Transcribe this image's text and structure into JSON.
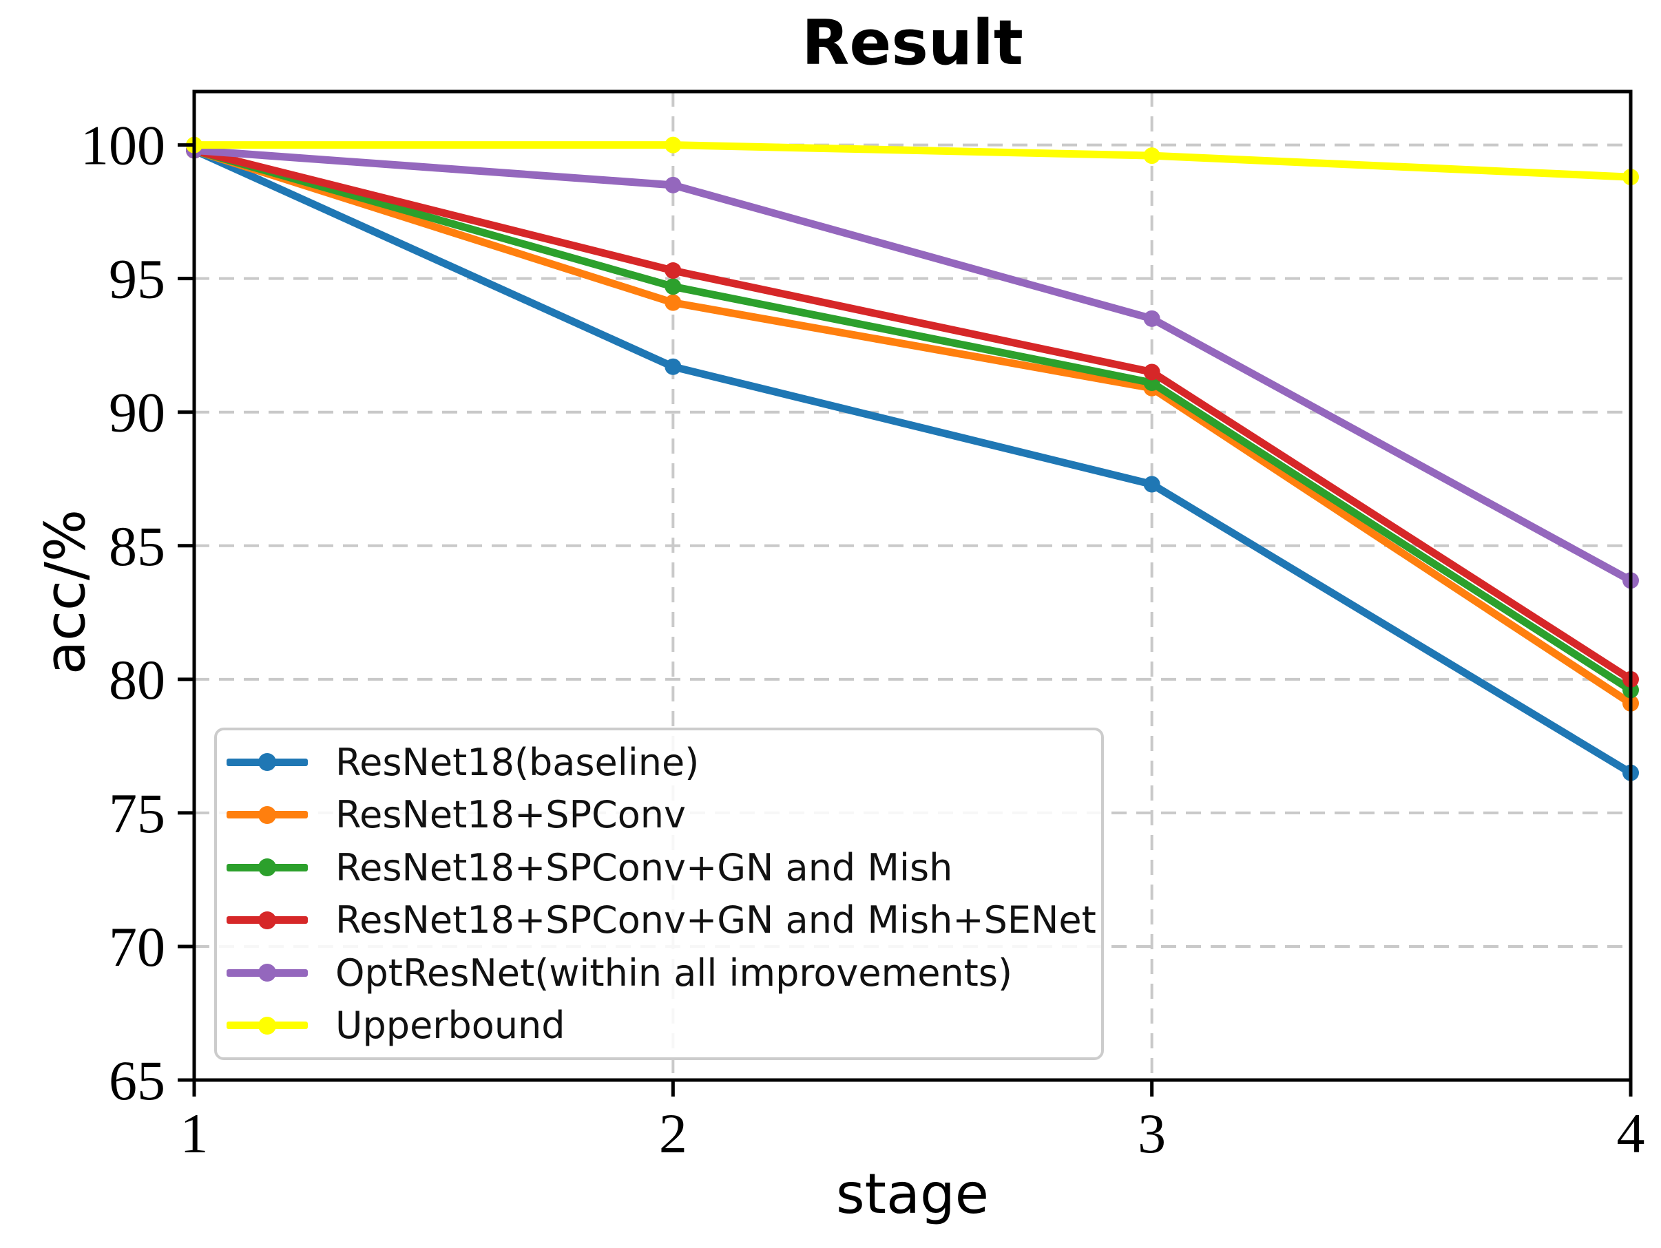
{
  "title": "Result",
  "axes": {
    "x_label": "stage",
    "y_label": "acc/%"
  },
  "chart_data": {
    "type": "line",
    "title": "Result",
    "xlabel": "stage",
    "ylabel": "acc/%",
    "x": [
      1,
      2,
      3,
      4
    ],
    "x_tick_labels": [
      "1",
      "2",
      "3",
      "4"
    ],
    "y_ticks": [
      100,
      95,
      90,
      85,
      80,
      75,
      70,
      65
    ],
    "y_tick_labels": [
      "100",
      "95",
      "90",
      "85",
      "80",
      "75",
      "70",
      "65"
    ],
    "xlim": [
      1,
      4
    ],
    "ylim": [
      65,
      102
    ],
    "grid": "dashed-both-axes",
    "legend_position": "lower-left",
    "series": [
      {
        "name": "ResNet18(baseline)",
        "color": "#1f77b4",
        "marker": "circle",
        "values": [
          99.8,
          91.7,
          87.3,
          76.5
        ]
      },
      {
        "name": "ResNet18+SPConv",
        "color": "#ff7f0e",
        "marker": "circle",
        "values": [
          99.8,
          94.1,
          90.9,
          79.1
        ]
      },
      {
        "name": "ResNet18+SPConv+GN and Mish",
        "color": "#2ca02c",
        "marker": "circle",
        "values": [
          99.8,
          94.7,
          91.1,
          79.6
        ]
      },
      {
        "name": "ResNet18+SPConv+GN and Mish+SENet",
        "color": "#d62728",
        "marker": "circle",
        "values": [
          99.8,
          95.3,
          91.5,
          80.0
        ]
      },
      {
        "name": "OptResNet(within all improvements)",
        "color": "#9467bd",
        "marker": "circle",
        "values": [
          99.8,
          98.5,
          93.5,
          83.7
        ]
      },
      {
        "name": "Upperbound",
        "color": "#ffff00",
        "marker": "circle",
        "values": [
          100.0,
          100.0,
          99.6,
          98.8
        ]
      }
    ]
  },
  "style_colors": {
    "grid": "#c9c9c9",
    "spine": "#000000",
    "legend_border": "#cccccc",
    "background": "#ffffff"
  }
}
